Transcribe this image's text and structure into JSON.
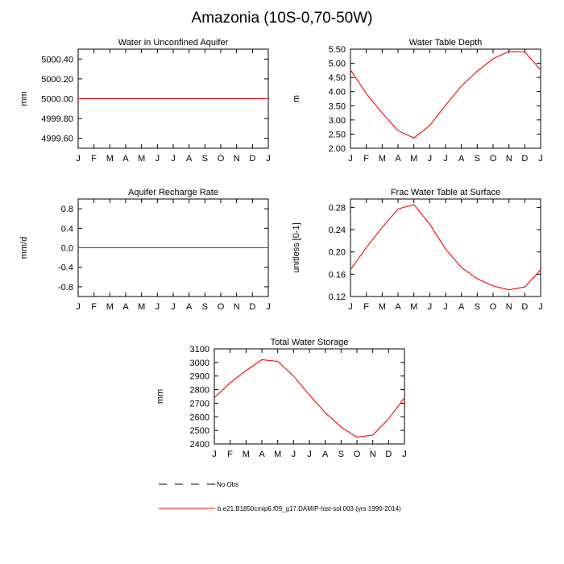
{
  "title": "Amazonia (10S-0,70-50W)",
  "colors": {
    "model": "#ff0000",
    "axis": "#000000",
    "obs": "#000000"
  },
  "legend": {
    "obs_label": "No Obs",
    "model_label": "b.e21.B1850cmip6.f09_g17.DAMIP-hist-sol.003 (yrs 1990-2014)"
  },
  "chart_data": [
    {
      "type": "line",
      "title": "Water in Unconfined Aquifer",
      "ylabel": "mm",
      "xlabel": "",
      "categories": [
        "J",
        "F",
        "M",
        "A",
        "M",
        "J",
        "J",
        "A",
        "S",
        "O",
        "N",
        "D",
        "J"
      ],
      "ylim": [
        4999.5,
        5000.5
      ],
      "yticks": [
        4999.6,
        4999.8,
        5000.0,
        5000.2,
        5000.4
      ],
      "ytick_labels": [
        "4999.60",
        "4999.80",
        "5000.00",
        "5000.20",
        "5000.40"
      ],
      "series": [
        {
          "values": [
            5000,
            5000,
            5000,
            5000,
            5000,
            5000,
            5000,
            5000,
            5000,
            5000,
            5000,
            5000,
            5000
          ]
        }
      ]
    },
    {
      "type": "line",
      "title": "Water Table Depth",
      "ylabel": "m",
      "xlabel": "",
      "categories": [
        "J",
        "F",
        "M",
        "A",
        "M",
        "J",
        "J",
        "A",
        "S",
        "O",
        "N",
        "D",
        "J"
      ],
      "ylim": [
        2.0,
        5.5
      ],
      "yticks": [
        2.0,
        2.5,
        3.0,
        3.5,
        4.0,
        4.5,
        5.0,
        5.5
      ],
      "ytick_labels": [
        "2.00",
        "2.50",
        "3.00",
        "3.50",
        "4.00",
        "4.50",
        "5.00",
        "5.50"
      ],
      "series": [
        {
          "values": [
            4.77,
            3.93,
            3.25,
            2.62,
            2.36,
            2.8,
            3.52,
            4.2,
            4.72,
            5.16,
            5.42,
            5.4,
            4.77
          ]
        }
      ]
    },
    {
      "type": "line",
      "title": "Aquifer Recharge Rate",
      "ylabel": "mm/d",
      "xlabel": "",
      "categories": [
        "J",
        "F",
        "M",
        "A",
        "M",
        "J",
        "J",
        "A",
        "S",
        "O",
        "N",
        "D",
        "J"
      ],
      "ylim": [
        -1.0,
        1.0
      ],
      "yticks": [
        -0.8,
        -0.4,
        0.0,
        0.4,
        0.8
      ],
      "ytick_labels": [
        "-0.8",
        "-0.4",
        "0.0",
        "0.4",
        "0.8"
      ],
      "series": [
        {
          "values": [
            0,
            0,
            0,
            0,
            0,
            0,
            0,
            0,
            0,
            0,
            0,
            0,
            0
          ]
        }
      ]
    },
    {
      "type": "line",
      "title": "Frac Water Table at Surface",
      "ylabel": "unitless [0-1]",
      "xlabel": "",
      "categories": [
        "J",
        "F",
        "M",
        "A",
        "M",
        "J",
        "J",
        "A",
        "S",
        "O",
        "N",
        "D",
        "J"
      ],
      "ylim": [
        0.12,
        0.295
      ],
      "yticks": [
        0.12,
        0.16,
        0.2,
        0.24,
        0.28
      ],
      "ytick_labels": [
        "0.12",
        "0.16",
        "0.20",
        "0.24",
        "0.28"
      ],
      "series": [
        {
          "values": [
            0.168,
            0.208,
            0.244,
            0.277,
            0.285,
            0.25,
            0.205,
            0.172,
            0.152,
            0.139,
            0.132,
            0.137,
            0.168
          ]
        }
      ]
    },
    {
      "type": "line",
      "title": "Total Water Storage",
      "ylabel": "mm",
      "xlabel": "",
      "categories": [
        "J",
        "F",
        "M",
        "A",
        "M",
        "J",
        "J",
        "A",
        "S",
        "O",
        "N",
        "D",
        "J"
      ],
      "ylim": [
        2400,
        3100
      ],
      "yticks": [
        2400,
        2500,
        2600,
        2700,
        2800,
        2900,
        3000,
        3100
      ],
      "ytick_labels": [
        "2400",
        "2500",
        "2600",
        "2700",
        "2800",
        "2900",
        "3000",
        "3100"
      ],
      "series": [
        {
          "values": [
            2740,
            2850,
            2940,
            3020,
            3008,
            2900,
            2760,
            2630,
            2525,
            2450,
            2465,
            2585,
            2740
          ]
        }
      ]
    }
  ]
}
